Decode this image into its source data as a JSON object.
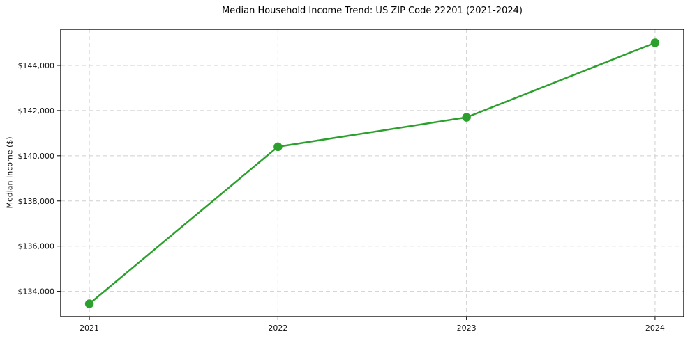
{
  "chart_data": {
    "type": "line",
    "title": "Median Household Income Trend: US ZIP Code 22201 (2021-2024)",
    "xlabel": "",
    "ylabel": "Median Income ($)",
    "categories": [
      "2021",
      "2022",
      "2023",
      "2024"
    ],
    "series": [
      {
        "name": "Median Household Income",
        "values": [
          133450,
          140400,
          141700,
          145000
        ]
      }
    ],
    "yticks": [
      {
        "value": 134000,
        "label": "$134,000"
      },
      {
        "value": 136000,
        "label": "$136,000"
      },
      {
        "value": 138000,
        "label": "$138,000"
      },
      {
        "value": 140000,
        "label": "$140,000"
      },
      {
        "value": 142000,
        "label": "$142,000"
      },
      {
        "value": 144000,
        "label": "$144,000"
      }
    ],
    "ylim": [
      132880,
      145600
    ],
    "x_margin_frac": 0.046,
    "grid": "both, dashed",
    "legend": "none",
    "line_color": "#2ca02c",
    "marker": "circle",
    "grid_color": "#cfcfcf",
    "axis_color": "#000000",
    "background": "#ffffff"
  }
}
